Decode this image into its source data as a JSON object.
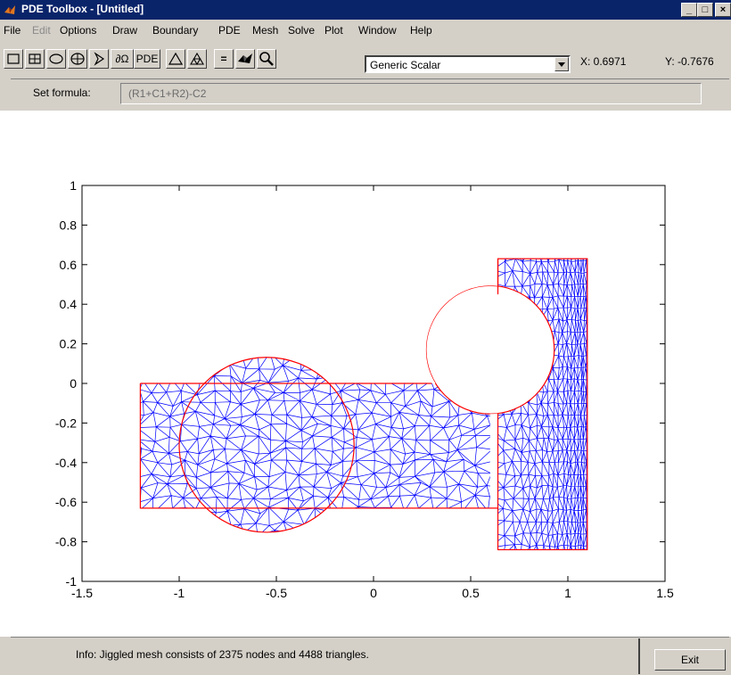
{
  "window": {
    "title": "PDE Toolbox - [Untitled]",
    "minimize": "_",
    "maximize": "□",
    "close": "×"
  },
  "menu": [
    "File",
    "Edit",
    "Options",
    "Draw",
    "Boundary",
    "PDE",
    "Mesh",
    "Solve",
    "Plot",
    "Window",
    "Help"
  ],
  "toolbar": {
    "buttons": [
      {
        "name": "rectangle-icon"
      },
      {
        "name": "rectangle-center-icon"
      },
      {
        "name": "ellipse-icon"
      },
      {
        "name": "ellipse-center-icon"
      },
      {
        "name": "polygon-icon"
      },
      {
        "name": "boundary-mode-icon",
        "label": "∂Ω"
      },
      {
        "name": "pde-mode-icon",
        "label": "PDE"
      },
      {
        "name": "init-mesh-icon"
      },
      {
        "name": "refine-mesh-icon"
      },
      {
        "name": "solve-icon",
        "label": "="
      },
      {
        "name": "plot-icon"
      },
      {
        "name": "zoom-icon"
      }
    ],
    "application": "Generic Scalar",
    "x_readout": "X: 0.6971",
    "y_readout": "Y: -0.7676"
  },
  "formula": {
    "label": "Set formula:",
    "value": "(R1+C1+R2)-C2"
  },
  "status": {
    "info": "Info:   Jiggled mesh consists of 2375 nodes and 4488 triangles.",
    "exit": "Exit"
  },
  "colors": {
    "mesh": "#0000ff",
    "boundary": "#ff0000",
    "titlebar": "#0a246a",
    "face": "#d4d0c8"
  },
  "chart_data": {
    "type": "mesh",
    "xlim": [
      -1.5,
      1.5
    ],
    "ylim": [
      -1,
      1
    ],
    "x_ticks": [
      "-1.5",
      "-1",
      "-0.5",
      "0",
      "0.5",
      "1",
      "1.5"
    ],
    "y_ticks": [
      "1",
      "0.8",
      "0.6",
      "0.4",
      "0.2",
      "0",
      "-0.2",
      "-0.4",
      "-0.6",
      "-0.8",
      "-1"
    ],
    "x_tick_values": [
      -1.5,
      -1,
      -0.5,
      0,
      0.5,
      1,
      1.5
    ],
    "y_tick_values": [
      1,
      0.8,
      0.6,
      0.4,
      0.2,
      0,
      -0.2,
      -0.4,
      -0.6,
      -0.8,
      -1
    ],
    "shapes": {
      "R1": {
        "x": [
          -1.2,
          0.6
        ],
        "y": [
          -0.63,
          0
        ]
      },
      "C1": {
        "cx": -0.55,
        "cy": -0.31,
        "r": 0.45
      },
      "R2": {
        "x": [
          0.64,
          1.1
        ],
        "y": [
          -0.84,
          0.63
        ]
      },
      "C2": {
        "cx": 0.6,
        "cy": 0.17,
        "r": 0.33
      }
    },
    "nodes": 2375,
    "triangles": 4488
  }
}
